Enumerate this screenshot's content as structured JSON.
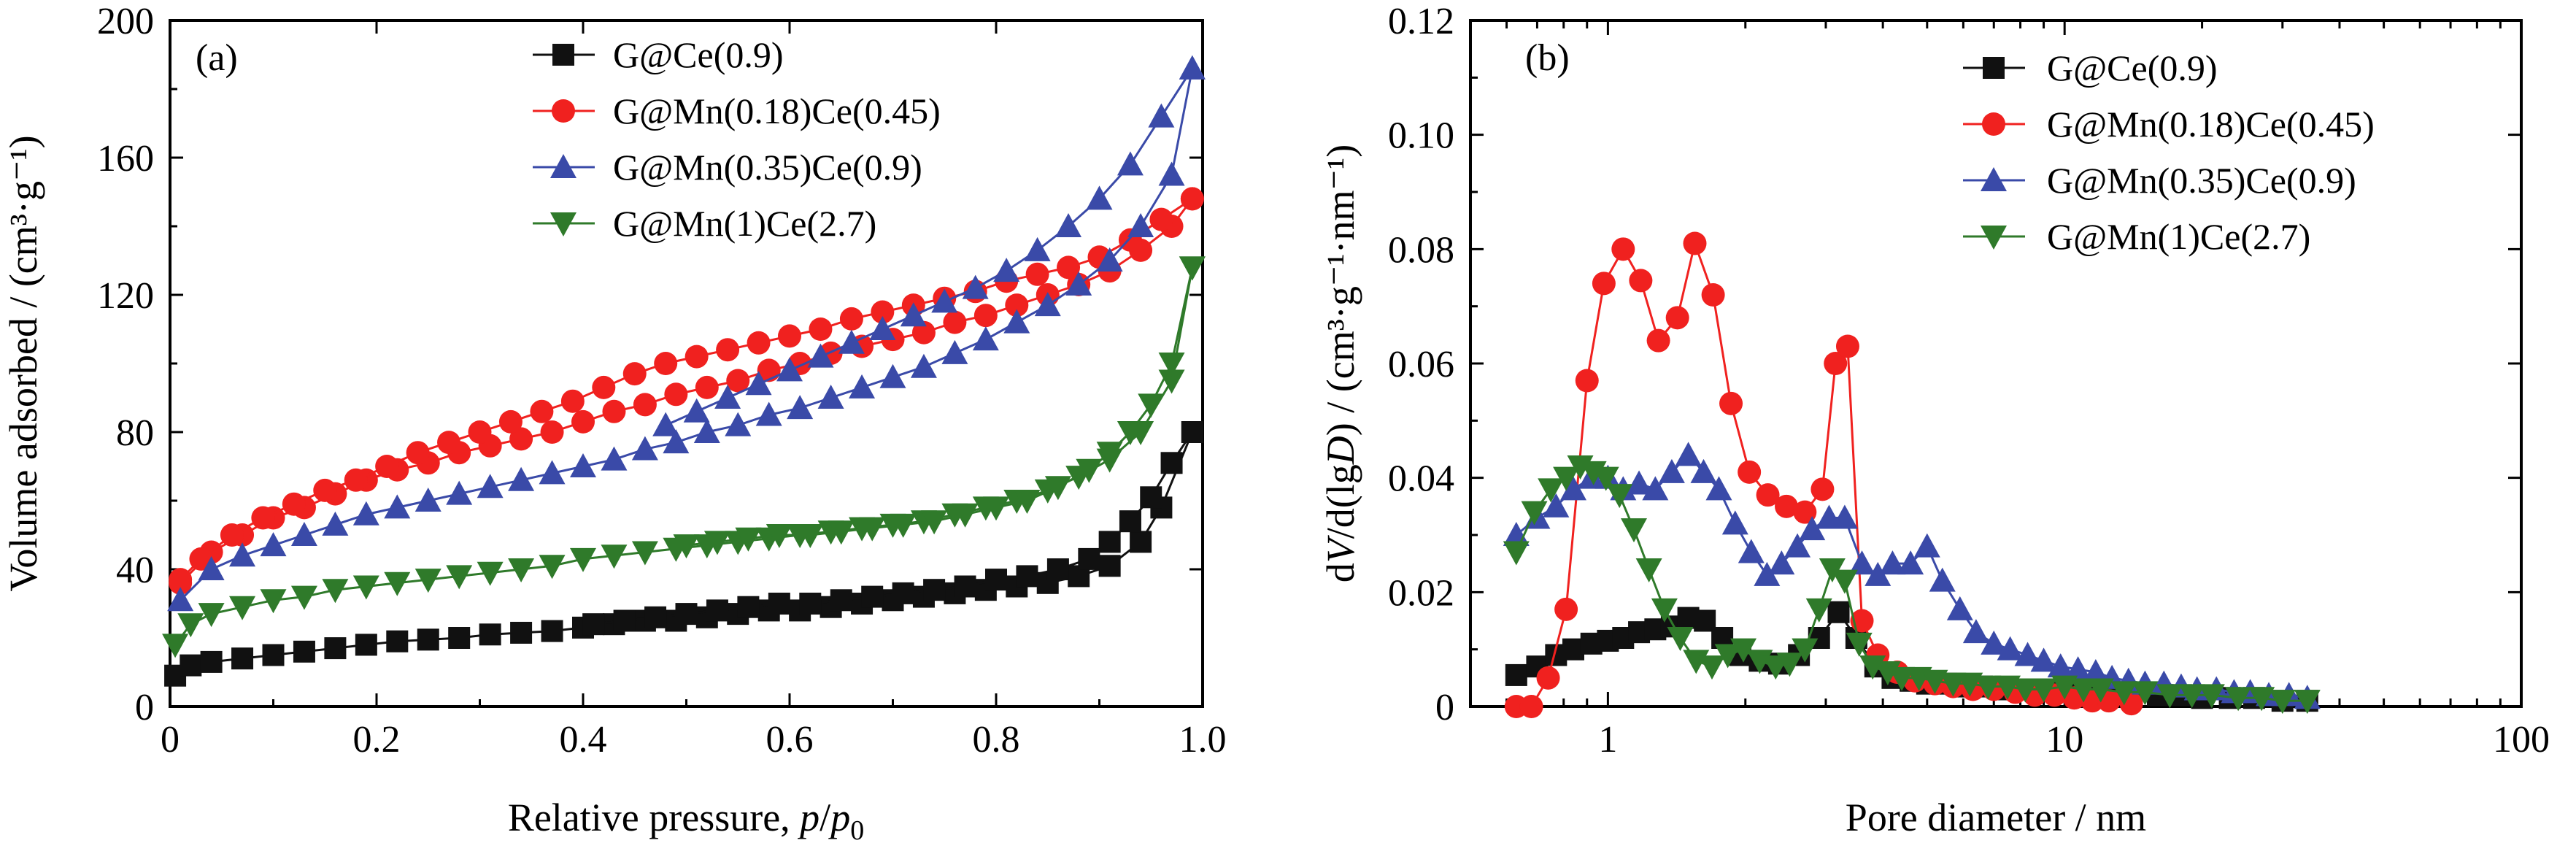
{
  "figure": {
    "colors": {
      "black": "#111111",
      "red": "#f0211f",
      "blue": "#3a4aa8",
      "green": "#2f7a2a"
    }
  },
  "chart_data": [
    {
      "id": "a",
      "type": "line",
      "panel_label": "(a)",
      "xlabel": "Relative pressure, p/p0",
      "ylabel": "Volume adsorbed / (cm³·g⁻¹)",
      "xlim": [
        0,
        1.0
      ],
      "ylim": [
        0,
        200
      ],
      "xticks": [
        0,
        0.2,
        0.4,
        0.6,
        0.8,
        1.0
      ],
      "xtick_labels": [
        "0",
        "0.2",
        "0.4",
        "0.6",
        "0.8",
        "1.0"
      ],
      "yticks": [
        0,
        40,
        80,
        120,
        160,
        200
      ],
      "ytick_labels": [
        "0",
        "40",
        "80",
        "120",
        "160",
        "200"
      ],
      "legend_position": "top-center",
      "series": [
        {
          "name": "G@Ce(0.9)",
          "color": "#111111",
          "marker": "square",
          "adsorption": {
            "x": [
              0.005,
              0.02,
              0.04,
              0.07,
              0.1,
              0.13,
              0.16,
              0.19,
              0.22,
              0.25,
              0.28,
              0.31,
              0.34,
              0.37,
              0.4,
              0.43,
              0.46,
              0.49,
              0.52,
              0.55,
              0.58,
              0.61,
              0.64,
              0.67,
              0.7,
              0.73,
              0.76,
              0.79,
              0.82,
              0.85,
              0.88,
              0.91,
              0.94,
              0.96,
              0.99
            ],
            "y": [
              9,
              12,
              13,
              14,
              15,
              16,
              17,
              18,
              19,
              19.5,
              20,
              21,
              21.5,
              22,
              23,
              24,
              25,
              25,
              26,
              27,
              28,
              28,
              29,
              30,
              31,
              32,
              33,
              34,
              35,
              36,
              38,
              41,
              48,
              58,
              80
            ]
          },
          "desorption": {
            "x": [
              0.99,
              0.97,
              0.95,
              0.93,
              0.91,
              0.89,
              0.86,
              0.83,
              0.8,
              0.77,
              0.74,
              0.71,
              0.68,
              0.65,
              0.62,
              0.59,
              0.56,
              0.53,
              0.5,
              0.47,
              0.44,
              0.41
            ],
            "y": [
              80,
              71,
              61,
              54,
              48,
              43,
              40,
              38,
              37,
              35,
              34,
              33,
              32,
              31,
              30,
              30,
              29,
              28,
              27,
              26,
              25,
              24
            ]
          }
        },
        {
          "name": "G@Mn(0.18)Ce(0.45)",
          "color": "#f0211f",
          "marker": "circle",
          "adsorption": {
            "x": [
              0.01,
              0.04,
              0.07,
              0.1,
              0.13,
              0.16,
              0.19,
              0.22,
              0.25,
              0.28,
              0.31,
              0.34,
              0.37,
              0.4,
              0.43,
              0.46,
              0.49,
              0.52,
              0.55,
              0.58,
              0.61,
              0.64,
              0.67,
              0.7,
              0.73,
              0.76,
              0.79,
              0.82,
              0.85,
              0.88,
              0.91,
              0.94,
              0.97,
              0.99
            ],
            "y": [
              36,
              45,
              50,
              55,
              58,
              62,
              66,
              69,
              71,
              74,
              76,
              78,
              80,
              83,
              86,
              88,
              91,
              93,
              95,
              98,
              100,
              103,
              105,
              107,
              109,
              112,
              114,
              117,
              120,
              123,
              127,
              133,
              140,
              148
            ]
          },
          "desorption": {
            "x": [
              0.99,
              0.96,
              0.93,
              0.9,
              0.87,
              0.84,
              0.81,
              0.78,
              0.75,
              0.72,
              0.69,
              0.66,
              0.63,
              0.6,
              0.57,
              0.54,
              0.51,
              0.48,
              0.45,
              0.42,
              0.39,
              0.36,
              0.33,
              0.3,
              0.27,
              0.24,
              0.21,
              0.18,
              0.15,
              0.12,
              0.09,
              0.06,
              0.03,
              0.01
            ],
            "y": [
              148,
              142,
              136,
              131,
              128,
              126,
              124,
              121,
              119,
              117,
              115,
              113,
              110,
              108,
              106,
              104,
              102,
              100,
              97,
              93,
              89,
              86,
              83,
              80,
              77,
              74,
              70,
              66,
              63,
              59,
              55,
              50,
              43,
              37
            ]
          }
        },
        {
          "name": "G@Mn(0.35)Ce(0.9)",
          "color": "#3a4aa8",
          "marker": "triangle-up",
          "adsorption": {
            "x": [
              0.01,
              0.04,
              0.07,
              0.1,
              0.13,
              0.16,
              0.19,
              0.22,
              0.25,
              0.28,
              0.31,
              0.34,
              0.37,
              0.4,
              0.43,
              0.46,
              0.49,
              0.52,
              0.55,
              0.58,
              0.61,
              0.64,
              0.67,
              0.7,
              0.73,
              0.76,
              0.79,
              0.82,
              0.85,
              0.88,
              0.91,
              0.94,
              0.97,
              0.99
            ],
            "y": [
              31,
              40,
              44,
              47,
              50,
              53,
              56,
              58,
              60,
              62,
              64,
              66,
              68,
              70,
              72,
              75,
              77,
              80,
              82,
              85,
              87,
              90,
              93,
              96,
              99,
              103,
              107,
              112,
              117,
              123,
              130,
              140,
              155,
              186
            ]
          },
          "desorption": {
            "x": [
              0.99,
              0.96,
              0.93,
              0.9,
              0.87,
              0.84,
              0.81,
              0.78,
              0.75,
              0.72,
              0.69,
              0.66,
              0.63,
              0.6,
              0.57,
              0.54,
              0.51,
              0.48
            ],
            "y": [
              186,
              172,
              158,
              148,
              140,
              133,
              127,
              122,
              118,
              114,
              110,
              106,
              102,
              98,
              94,
              90,
              86,
              82
            ]
          }
        },
        {
          "name": "G@Mn(1)Ce(2.7)",
          "color": "#2f7a2a",
          "marker": "triangle-down",
          "adsorption": {
            "x": [
              0.005,
              0.02,
              0.04,
              0.07,
              0.1,
              0.13,
              0.16,
              0.19,
              0.22,
              0.25,
              0.28,
              0.31,
              0.34,
              0.37,
              0.4,
              0.43,
              0.46,
              0.49,
              0.52,
              0.55,
              0.58,
              0.61,
              0.64,
              0.67,
              0.7,
              0.73,
              0.76,
              0.79,
              0.82,
              0.85,
              0.88,
              0.91,
              0.94,
              0.97,
              0.99
            ],
            "y": [
              18,
              24,
              27,
              29,
              31,
              32,
              34,
              35,
              36,
              37,
              38,
              39,
              40,
              41,
              43,
              44,
              45,
              46,
              47,
              48,
              49,
              50,
              51,
              52,
              53,
              54,
              56,
              58,
              60,
              63,
              67,
              72,
              80,
              95,
              128
            ]
          },
          "desorption": {
            "x": [
              0.99,
              0.97,
              0.95,
              0.93,
              0.91,
              0.89,
              0.86,
              0.83,
              0.8,
              0.77,
              0.74,
              0.71,
              0.68,
              0.65,
              0.62,
              0.59,
              0.56,
              0.53,
              0.5
            ],
            "y": [
              128,
              100,
              88,
              80,
              74,
              69,
              64,
              60,
              58,
              56,
              54,
              53,
              52,
              51,
              50,
              50,
              49,
              48,
              47
            ]
          }
        }
      ]
    },
    {
      "id": "b",
      "type": "line",
      "panel_label": "(b)",
      "xlabel": "Pore diameter / nm",
      "ylabel": "dV/d(lgD) / (cm³·g⁻¹·nm⁻¹)",
      "xscale": "log",
      "xlim": [
        0.5,
        100
      ],
      "ylim": [
        0,
        0.12
      ],
      "xticks": [
        1,
        10,
        100
      ],
      "xtick_labels": [
        "1",
        "10",
        "100"
      ],
      "yticks": [
        0,
        0.02,
        0.04,
        0.06,
        0.08,
        0.1,
        0.12
      ],
      "ytick_labels": [
        "0",
        "0.02",
        "0.04",
        "0.06",
        "0.08",
        "0.10",
        "0.12"
      ],
      "legend_position": "top-right",
      "series": [
        {
          "name": "G@Ce(0.9)",
          "color": "#111111",
          "marker": "square",
          "x": [
            0.63,
            0.7,
            0.77,
            0.84,
            0.92,
            1.0,
            1.08,
            1.17,
            1.27,
            1.38,
            1.5,
            1.63,
            1.78,
            1.95,
            2.15,
            2.37,
            2.62,
            2.9,
            3.2,
            3.5,
            3.85,
            4.2,
            4.6,
            5.0,
            5.5,
            6.0,
            6.6,
            7.3,
            8.0,
            9.0,
            10.0,
            11.0,
            12.5,
            14.0,
            16.0,
            18.0,
            20.0,
            23.0,
            26.0,
            30.0,
            34.0
          ],
          "y": [
            0.0055,
            0.007,
            0.009,
            0.01,
            0.011,
            0.0115,
            0.012,
            0.013,
            0.0135,
            0.014,
            0.0155,
            0.015,
            0.012,
            0.009,
            0.008,
            0.0075,
            0.009,
            0.012,
            0.0165,
            0.012,
            0.007,
            0.005,
            0.0045,
            0.004,
            0.004,
            0.0035,
            0.0035,
            0.003,
            0.003,
            0.003,
            0.003,
            0.0025,
            0.0025,
            0.002,
            0.002,
            0.002,
            0.0015,
            0.0015,
            0.0015,
            0.001,
            0.001
          ]
        },
        {
          "name": "G@Mn(0.18)Ce(0.45)",
          "color": "#f0211f",
          "marker": "circle",
          "x": [
            0.63,
            0.68,
            0.74,
            0.81,
            0.9,
            0.98,
            1.08,
            1.18,
            1.29,
            1.42,
            1.55,
            1.7,
            1.86,
            2.04,
            2.24,
            2.46,
            2.7,
            2.95,
            3.15,
            3.35,
            3.6,
            3.9,
            4.3,
            4.7,
            5.2,
            5.7,
            6.3,
            7.0,
            7.8,
            8.6,
            9.5,
            10.5,
            11.5,
            12.5,
            14.0
          ],
          "y": [
            0.0,
            0.0,
            0.005,
            0.017,
            0.057,
            0.074,
            0.08,
            0.0745,
            0.064,
            0.068,
            0.081,
            0.072,
            0.053,
            0.041,
            0.037,
            0.035,
            0.034,
            0.038,
            0.06,
            0.063,
            0.015,
            0.009,
            0.006,
            0.0045,
            0.004,
            0.0035,
            0.003,
            0.003,
            0.0025,
            0.002,
            0.002,
            0.0015,
            0.001,
            0.001,
            0.0005
          ]
        },
        {
          "name": "G@Mn(0.35)Ce(0.9)",
          "color": "#3a4aa8",
          "marker": "triangle-up",
          "x": [
            0.63,
            0.7,
            0.77,
            0.84,
            0.92,
            1.0,
            1.08,
            1.17,
            1.27,
            1.38,
            1.5,
            1.62,
            1.75,
            1.9,
            2.06,
            2.23,
            2.4,
            2.6,
            2.8,
            3.05,
            3.3,
            3.6,
            3.9,
            4.2,
            4.6,
            5.0,
            5.4,
            5.9,
            6.4,
            7.0,
            7.6,
            8.3,
            9.0,
            9.8,
            10.7,
            11.7,
            12.7,
            13.8,
            15.0,
            16.5,
            18.0,
            19.5,
            21.5,
            23.5,
            25.5,
            28.0,
            31.0,
            34.0
          ],
          "y": [
            0.03,
            0.033,
            0.035,
            0.038,
            0.04,
            0.04,
            0.038,
            0.039,
            0.038,
            0.041,
            0.044,
            0.041,
            0.038,
            0.032,
            0.027,
            0.023,
            0.025,
            0.028,
            0.031,
            0.033,
            0.033,
            0.025,
            0.023,
            0.025,
            0.025,
            0.028,
            0.022,
            0.017,
            0.013,
            0.011,
            0.01,
            0.009,
            0.008,
            0.007,
            0.0065,
            0.006,
            0.005,
            0.0045,
            0.004,
            0.004,
            0.0035,
            0.003,
            0.003,
            0.0025,
            0.0025,
            0.002,
            0.002,
            0.0015
          ]
        },
        {
          "name": "G@Mn(1)Ce(2.7)",
          "color": "#2f7a2a",
          "marker": "triangle-down",
          "x": [
            0.63,
            0.69,
            0.75,
            0.81,
            0.87,
            0.93,
            0.99,
            1.06,
            1.14,
            1.23,
            1.33,
            1.44,
            1.56,
            1.69,
            1.83,
            1.98,
            2.15,
            2.33,
            2.5,
            2.7,
            2.9,
            3.1,
            3.3,
            3.55,
            3.8,
            4.1,
            4.4,
            4.8,
            5.2,
            5.7,
            6.2,
            6.8,
            7.5,
            8.2,
            9.0,
            10.0,
            11.0,
            12.0,
            13.5,
            15.0,
            17.0,
            19.0,
            21.0,
            24.0,
            27.0,
            30.0,
            34.0
          ],
          "y": [
            0.027,
            0.034,
            0.038,
            0.04,
            0.042,
            0.041,
            0.04,
            0.037,
            0.031,
            0.024,
            0.017,
            0.012,
            0.008,
            0.007,
            0.009,
            0.01,
            0.008,
            0.007,
            0.0075,
            0.01,
            0.017,
            0.024,
            0.022,
            0.011,
            0.007,
            0.006,
            0.005,
            0.005,
            0.0045,
            0.004,
            0.004,
            0.0035,
            0.0035,
            0.003,
            0.003,
            0.0035,
            0.003,
            0.003,
            0.0025,
            0.0025,
            0.002,
            0.002,
            0.002,
            0.0015,
            0.0015,
            0.001,
            0.001
          ]
        }
      ]
    }
  ],
  "panel_a_text": {
    "label": "(a)",
    "xlabel_main": "Relative pressure, ",
    "xlabel_p": "p",
    "xlabel_slash": "/",
    "xlabel_p0": "p",
    "xlabel_sub": "0",
    "ylabel": "Volume adsorbed / (cm³·g⁻¹)"
  },
  "panel_b_text": {
    "label": "(b)",
    "xlabel": "Pore diameter / nm",
    "ylabel_d1": "d",
    "ylabel_V": "V",
    "ylabel_mid": "/d(lg",
    "ylabel_D": "D",
    "ylabel_tail": ") / (cm³·g⁻¹·nm⁻¹)"
  }
}
